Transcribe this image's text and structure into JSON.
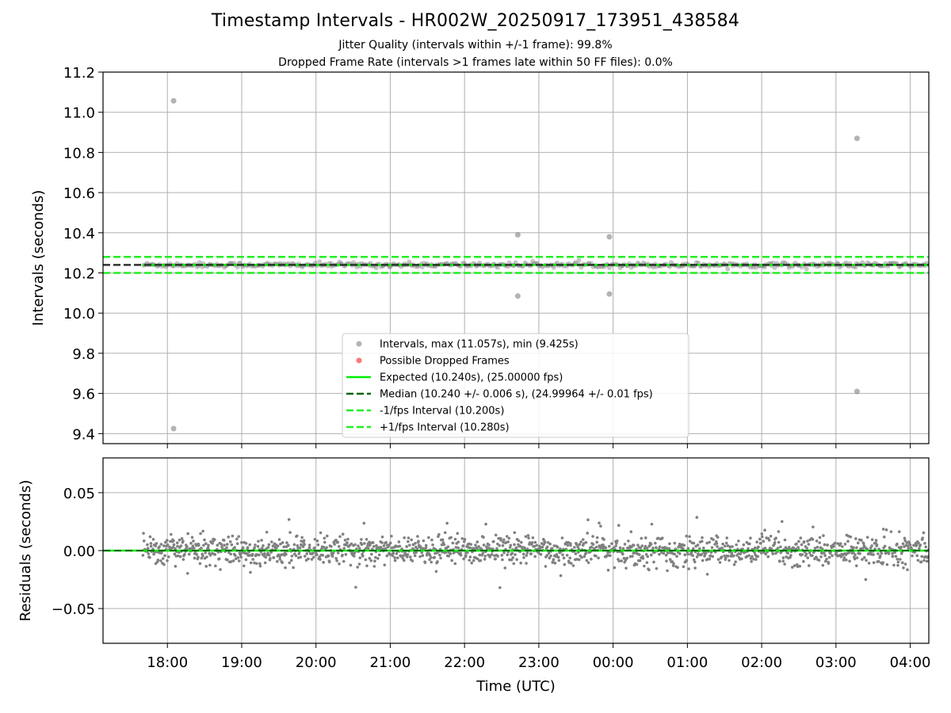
{
  "figure": {
    "title": "Timestamp Intervals - HR002W_20250917_173951_438584",
    "subtitle_1": "Jitter Quality (intervals within +/-1 frame): 99.8%",
    "subtitle_2": "Dropped Frame Rate (intervals >1 frames late within 50 FF files): 0.0%"
  },
  "colors": {
    "expected": "#00ee00",
    "median": "#006400",
    "interval_band": "#22ee22",
    "points": "#808080",
    "dropped": "#ff5555",
    "grid": "#b0b0b0"
  },
  "chart_data": [
    {
      "type": "scatter",
      "xlabel": "",
      "ylabel": "Intervals (seconds)",
      "xlim": [
        "17:08",
        "04:15"
      ],
      "ylim": [
        9.35,
        11.2
      ],
      "yticks": [
        "9.4",
        "9.6",
        "9.8",
        "10.0",
        "10.2",
        "10.4",
        "10.6",
        "10.8",
        "11.0",
        "11.2"
      ],
      "grid": true,
      "legend_position": "lower-center",
      "series": [
        {
          "name": "Intervals, max (11.057s), min (9.425s)",
          "kind": "scatter",
          "note": "dense band of points between 10.22 and 10.26 s from 17:40 to 04:15",
          "outliers": [
            {
              "x": "18:05",
              "y": 11.057
            },
            {
              "x": "18:05",
              "y": 9.425
            },
            {
              "x": "22:43",
              "y": 10.39
            },
            {
              "x": "22:43",
              "y": 10.085
            },
            {
              "x": "23:57",
              "y": 10.38
            },
            {
              "x": "23:57",
              "y": 10.095
            },
            {
              "x": "03:17",
              "y": 10.87
            },
            {
              "x": "03:17",
              "y": 9.61
            }
          ]
        },
        {
          "name": "Possible Dropped Frames",
          "kind": "scatter",
          "points": []
        },
        {
          "name": "Expected (10.240s), (25.00000 fps)",
          "kind": "hline",
          "y": 10.24,
          "style": "solid"
        },
        {
          "name": "Median (10.240 +/- 0.006 s), (24.99964 +/- 0.01 fps)",
          "kind": "hline",
          "y": 10.24,
          "style": "dashed"
        },
        {
          "name": "-1/fps Interval (10.200s)",
          "kind": "hline",
          "y": 10.2,
          "style": "dashed"
        },
        {
          "name": "+1/fps Interval (10.280s)",
          "kind": "hline",
          "y": 10.28,
          "style": "dashed"
        }
      ]
    },
    {
      "type": "scatter",
      "xlabel": "Time (UTC)",
      "ylabel": "Residuals (seconds)",
      "xlim": [
        "17:08",
        "04:15"
      ],
      "ylim": [
        -0.08,
        0.08
      ],
      "yticks": [
        "−0.05",
        "0.00",
        "0.05"
      ],
      "xticks": [
        "18:00",
        "19:00",
        "20:00",
        "21:00",
        "22:00",
        "23:00",
        "00:00",
        "01:00",
        "02:00",
        "03:00",
        "04:00"
      ],
      "grid": true,
      "series": [
        {
          "name": "Residuals",
          "kind": "scatter",
          "note": "points spread roughly -0.02 to +0.02 s from 17:40 to 04:15 around a zero line",
          "max": 0.033,
          "min": -0.035
        }
      ]
    }
  ]
}
